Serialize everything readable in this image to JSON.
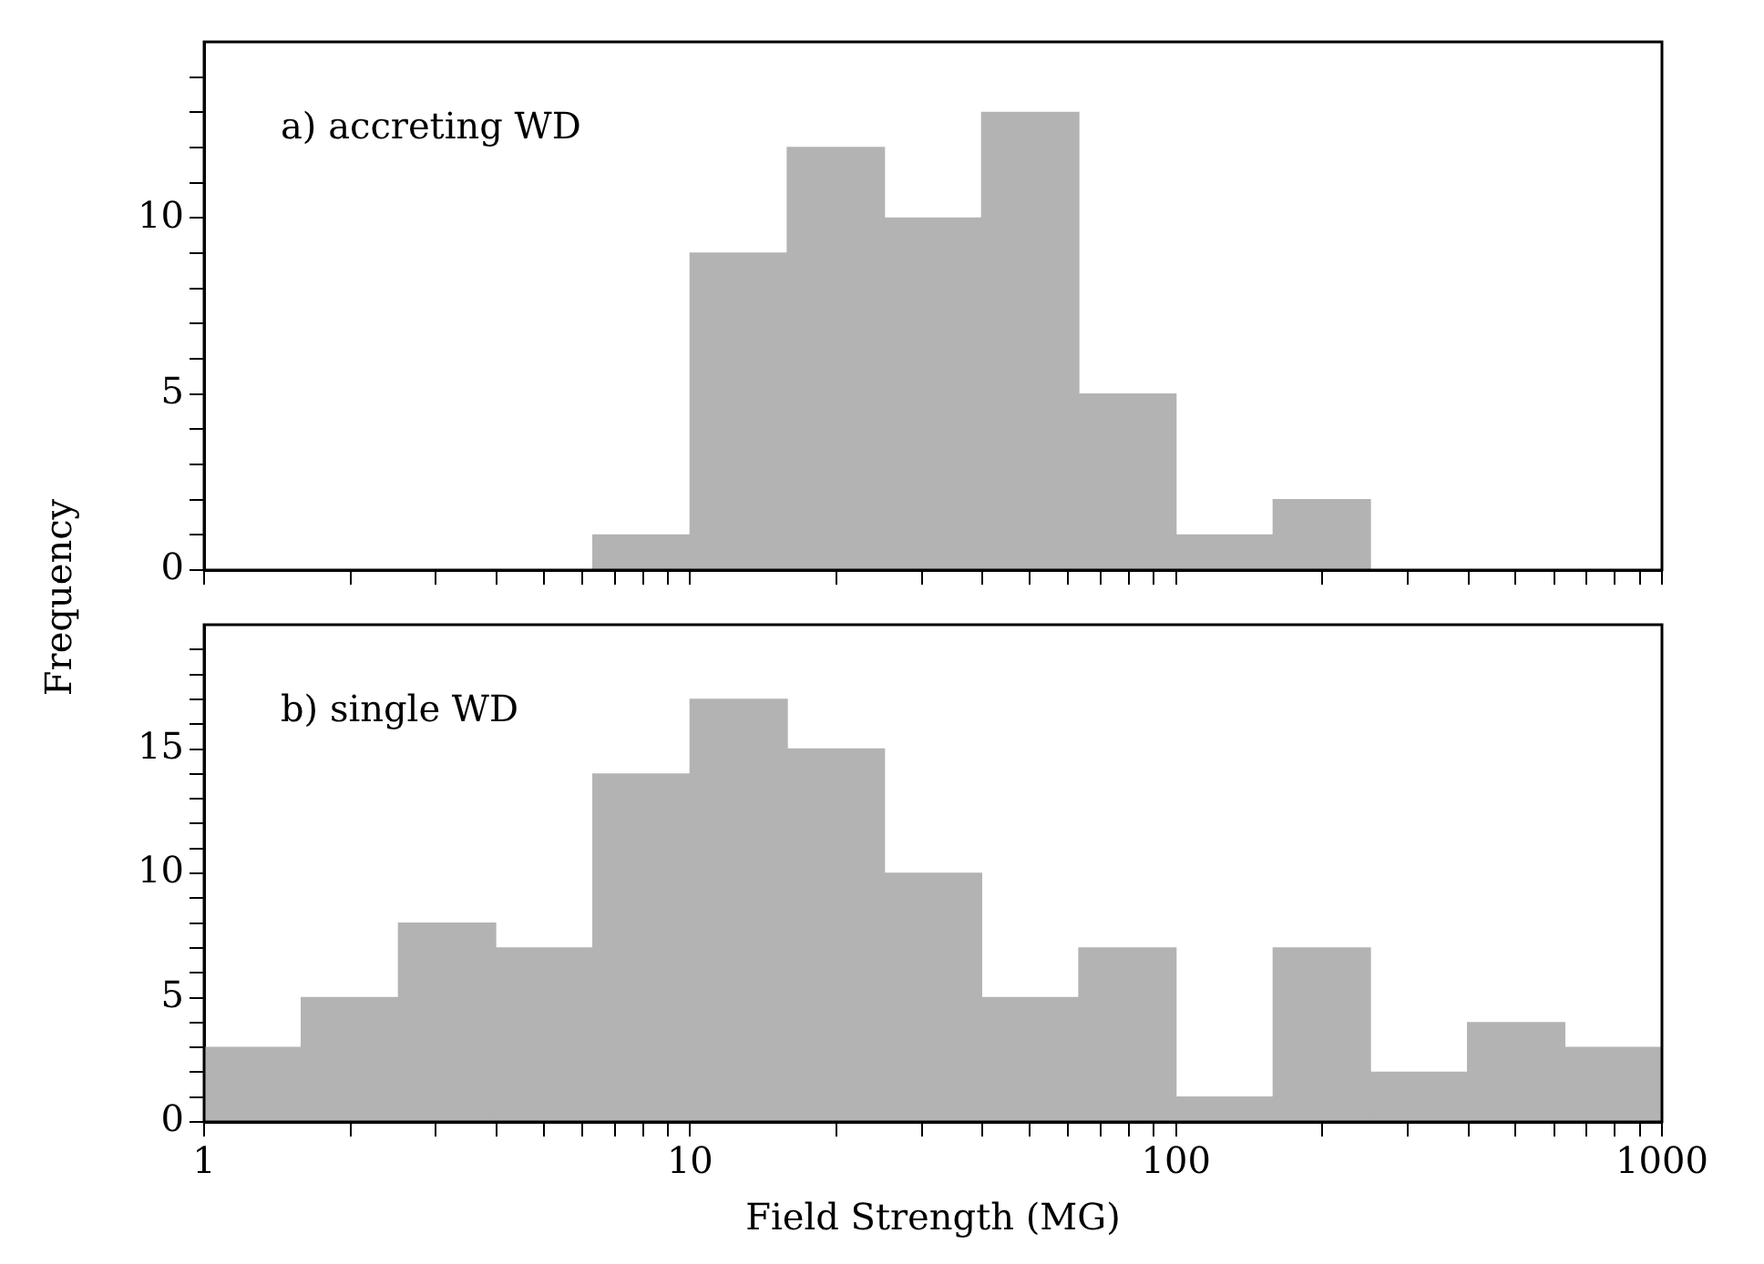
{
  "chart_data": [
    {
      "type": "histogram",
      "ylabel": "Frequency",
      "annotations": [
        "a) accreting WD"
      ],
      "bins": [
        1,
        1.585,
        2.512,
        3.981,
        6.31,
        10,
        15.85,
        25.12,
        39.81,
        63.1,
        100,
        158.5,
        251.2,
        398.1,
        631,
        1000
      ],
      "values": [
        0,
        0,
        0,
        0,
        1,
        9,
        12,
        10,
        13,
        5,
        1,
        2,
        0,
        0,
        0
      ],
      "color": "#b3b3b3",
      "log": "x",
      "xlim": [
        1,
        1000
      ],
      "xticks": [
        1,
        {
          "value": 2,
          "label": null
        },
        {
          "value": 3,
          "label": null
        },
        {
          "value": 4,
          "label": null
        },
        {
          "value": 5,
          "label": null
        },
        {
          "value": 6,
          "label": null
        },
        {
          "value": 7,
          "label": null
        },
        {
          "value": 8,
          "label": null
        },
        {
          "value": 9,
          "label": null
        },
        10,
        {
          "value": 20,
          "label": null
        },
        {
          "value": 30,
          "label": null
        },
        {
          "value": 40,
          "label": null
        },
        {
          "value": 50,
          "label": null
        },
        {
          "value": 60,
          "label": null
        },
        {
          "value": 70,
          "label": null
        },
        {
          "value": 80,
          "label": null
        },
        {
          "value": 90,
          "label": null
        },
        100,
        {
          "value": 200,
          "label": null
        },
        {
          "value": 300,
          "label": null
        },
        {
          "value": 400,
          "label": null
        },
        {
          "value": 500,
          "label": null
        },
        {
          "value": 600,
          "label": null
        },
        {
          "value": 700,
          "label": null
        },
        {
          "value": 800,
          "label": null
        },
        {
          "value": 900,
          "label": null
        },
        1000
      ],
      "ylim": [
        0,
        15
      ],
      "yticks": [
        0,
        {
          "value": 1,
          "label": null
        },
        {
          "value": 2,
          "label": null
        },
        {
          "value": 3,
          "label": null
        },
        {
          "value": 4,
          "label": null
        },
        5,
        {
          "value": 6,
          "label": null
        },
        {
          "value": 7,
          "label": null
        },
        {
          "value": 8,
          "label": null
        },
        {
          "value": 9,
          "label": null
        },
        10,
        {
          "value": 11,
          "label": null
        },
        {
          "value": 12,
          "label": null
        },
        {
          "value": 13,
          "label": null
        },
        {
          "value": 14,
          "label": null
        }
      ],
      "tick_labels": "y"
    },
    {
      "type": "histogram",
      "xlabel": "Field Strength (MG)",
      "annotations": [
        "b) single WD"
      ],
      "bins": [
        1,
        1.585,
        2.512,
        3.981,
        6.31,
        10,
        15.85,
        25.12,
        39.81,
        63.1,
        100,
        158.5,
        251.2,
        398.1,
        631,
        1000
      ],
      "values": [
        3,
        5,
        8,
        7,
        14,
        17,
        15,
        10,
        5,
        7,
        1,
        7,
        2,
        4,
        3
      ],
      "color": "#b3b3b3",
      "log": "x",
      "xlim": [
        1,
        1000
      ],
      "xticks": [
        1,
        {
          "value": 2,
          "label": null
        },
        {
          "value": 3,
          "label": null
        },
        {
          "value": 4,
          "label": null
        },
        {
          "value": 5,
          "label": null
        },
        {
          "value": 6,
          "label": null
        },
        {
          "value": 7,
          "label": null
        },
        {
          "value": 8,
          "label": null
        },
        {
          "value": 9,
          "label": null
        },
        10,
        {
          "value": 20,
          "label": null
        },
        {
          "value": 30,
          "label": null
        },
        {
          "value": 40,
          "label": null
        },
        {
          "value": 50,
          "label": null
        },
        {
          "value": 60,
          "label": null
        },
        {
          "value": 70,
          "label": null
        },
        {
          "value": 80,
          "label": null
        },
        {
          "value": 90,
          "label": null
        },
        100,
        {
          "value": 200,
          "label": null
        },
        {
          "value": 300,
          "label": null
        },
        {
          "value": 400,
          "label": null
        },
        {
          "value": 500,
          "label": null
        },
        {
          "value": 600,
          "label": null
        },
        {
          "value": 700,
          "label": null
        },
        {
          "value": 800,
          "label": null
        },
        {
          "value": 900,
          "label": null
        },
        1000
      ],
      "ylim": [
        0,
        20
      ],
      "yticks": [
        0,
        {
          "value": 1,
          "label": null
        },
        {
          "value": 2,
          "label": null
        },
        {
          "value": 3,
          "label": null
        },
        {
          "value": 4,
          "label": null
        },
        5,
        {
          "value": 6,
          "label": null
        },
        {
          "value": 7,
          "label": null
        },
        {
          "value": 8,
          "label": null
        },
        {
          "value": 9,
          "label": null
        },
        10,
        {
          "value": 11,
          "label": null
        },
        {
          "value": 12,
          "label": null
        },
        {
          "value": 13,
          "label": null
        },
        {
          "value": 14,
          "label": null
        },
        15,
        {
          "value": 16,
          "label": null
        },
        {
          "value": 17,
          "label": null
        },
        {
          "value": 18,
          "label": null
        },
        {
          "value": 19,
          "label": null
        }
      ]
    }
  ]
}
